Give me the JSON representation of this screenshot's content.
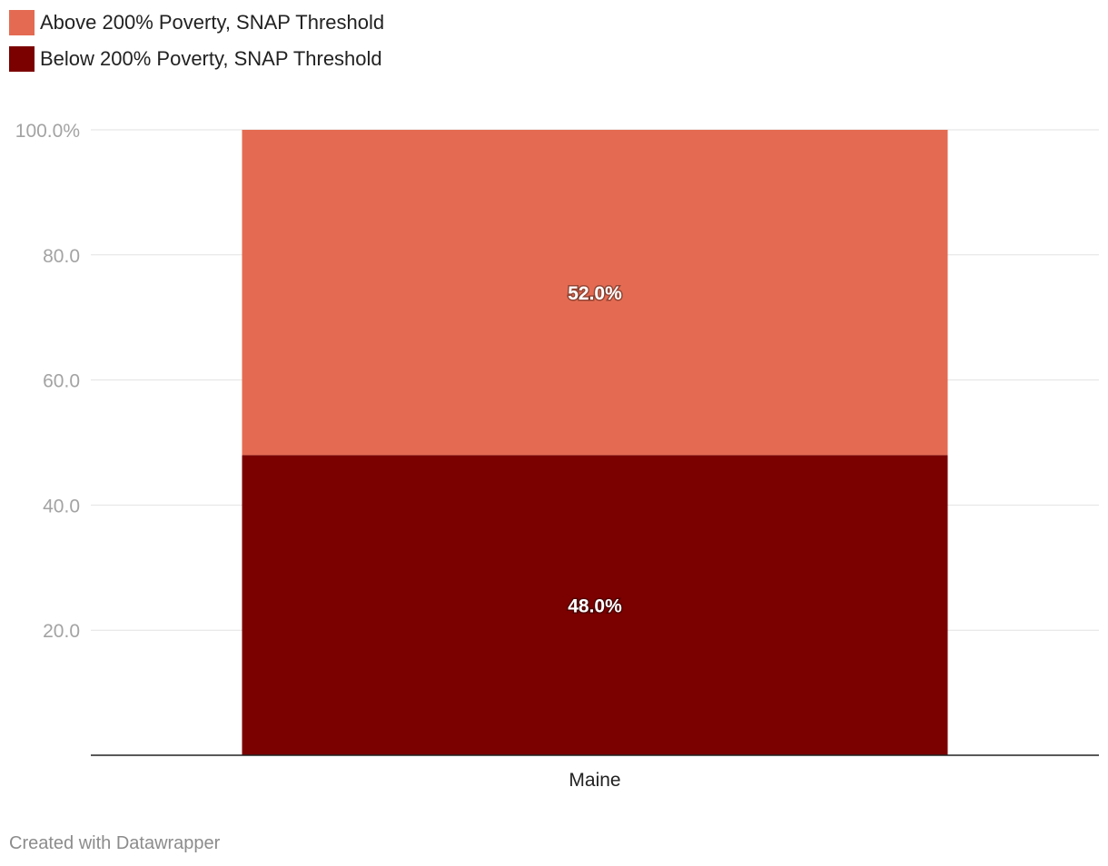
{
  "chart_data": {
    "type": "bar",
    "stacked": true,
    "categories": [
      "Maine"
    ],
    "series": [
      {
        "name": "Below 200% Poverty, SNAP Threshold",
        "values": [
          48.0
        ],
        "label": "48.0%",
        "color": "#7b0000"
      },
      {
        "name": "Above 200% Poverty, SNAP Threshold",
        "values": [
          52.0
        ],
        "label": "52.0%",
        "color": "#e46b52"
      }
    ],
    "ylim": [
      0,
      100
    ],
    "yticks": [
      {
        "value": 20,
        "label": "20.0"
      },
      {
        "value": 40,
        "label": "40.0"
      },
      {
        "value": 60,
        "label": "60.0"
      },
      {
        "value": 80,
        "label": "80.0"
      },
      {
        "value": 100,
        "label": "100.0%"
      }
    ],
    "grid": true,
    "legend_position": "top-left",
    "title": "",
    "xlabel": "",
    "ylabel": ""
  },
  "legend": {
    "items": [
      {
        "label": "Above 200% Poverty, SNAP Threshold",
        "color": "#e46b52"
      },
      {
        "label": "Below 200% Poverty, SNAP Threshold",
        "color": "#7b0000"
      }
    ]
  },
  "footer": {
    "credit": "Created with Datawrapper"
  }
}
